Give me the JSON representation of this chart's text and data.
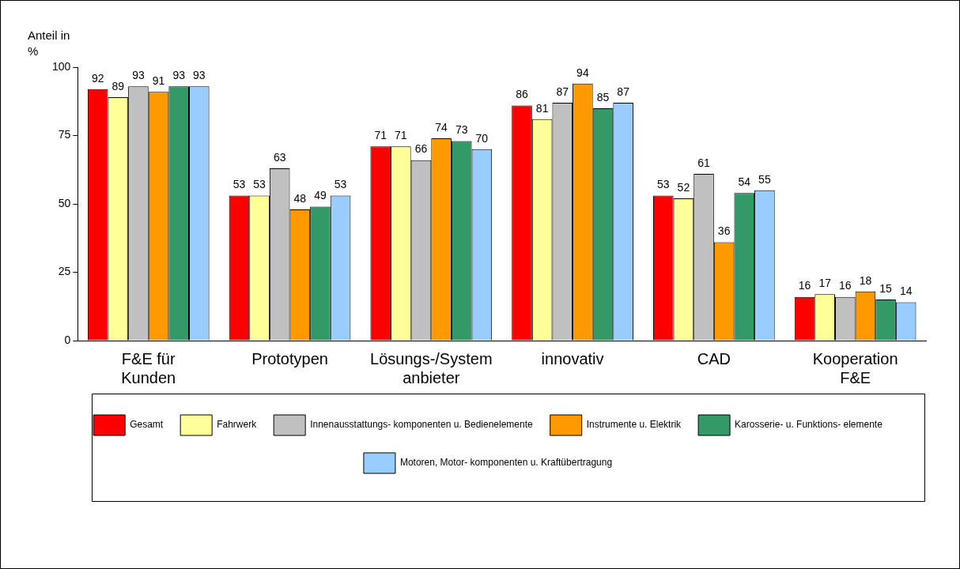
{
  "chart_data": {
    "type": "bar",
    "ylabel": "Anteil in %",
    "categories": [
      "F&E für\nKunden",
      "Prototypen",
      "Lösungs-/System\nanbieter",
      "innovativ",
      "CAD",
      "Kooperation\nF&E"
    ],
    "series": [
      {
        "name": "Gesamt",
        "color": "#ff0000",
        "values": [
          92,
          53,
          71,
          86,
          53,
          16
        ]
      },
      {
        "name": "Fahrwerk",
        "color": "#ffff99",
        "values": [
          89,
          53,
          71,
          81,
          52,
          17
        ]
      },
      {
        "name": "Innenausstattungs-\nkomponenten u.\nBedienelemente",
        "color": "#c0c0c0",
        "values": [
          93,
          63,
          66,
          87,
          61,
          16
        ]
      },
      {
        "name": "Instrumente u.\nElektrik",
        "color": "#ff9900",
        "values": [
          91,
          48,
          74,
          94,
          36,
          18
        ]
      },
      {
        "name": "Karosserie- u.\nFunktions-\nelemente",
        "color": "#339966",
        "values": [
          93,
          49,
          73,
          85,
          54,
          15
        ]
      },
      {
        "name": "Motoren, Motor-\nkomponenten u.\nKraftübertragung",
        "color": "#99ccff",
        "values": [
          93,
          53,
          70,
          87,
          55,
          14
        ]
      }
    ],
    "ylim": [
      0,
      100
    ],
    "yticks": [
      0,
      25,
      50,
      75,
      100
    ],
    "grid": false,
    "legend": "bottom",
    "data_labels": true
  }
}
